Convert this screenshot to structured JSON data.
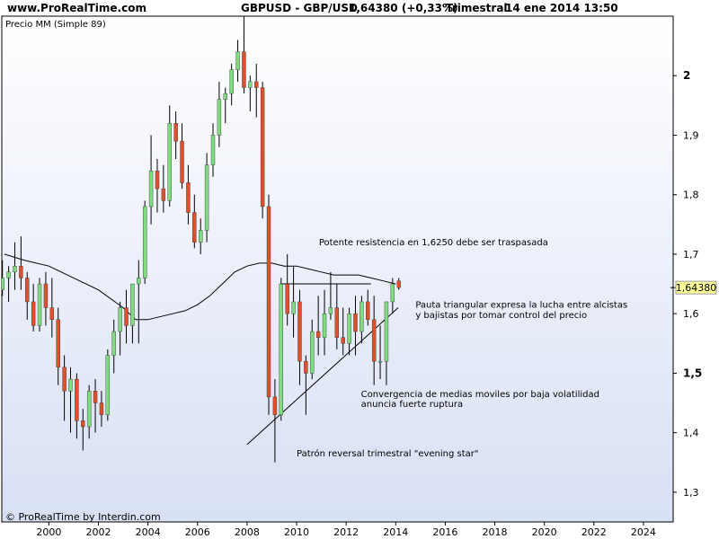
{
  "header": {
    "site": "www.ProRealTime.com",
    "symbol": "GBPUSD - GBP/USD",
    "quote": "1,64380 (+0,33%)",
    "period": "Trimestral",
    "datetime": "14 ene 2014 13:50"
  },
  "footer": {
    "credit": "© ProRealTime by Interdin.com"
  },
  "chart_data": {
    "type": "candlestick",
    "indicator_label": "Precio MM (Simple 89)",
    "last_price": 1.6438,
    "last_price_label": "1,64380",
    "ylim": [
      1.25,
      2.1
    ],
    "xlim": [
      1998.1,
      2025.2
    ],
    "y_ticks": [
      1.3,
      1.4,
      1.5,
      1.6,
      1.7,
      1.8,
      1.9,
      2.0
    ],
    "y_tick_labels": [
      "1,3",
      "1,4",
      "1,5",
      "1,6",
      "1,7",
      "1,8",
      "1,9",
      "2"
    ],
    "x_ticks": [
      2000,
      2002,
      2004,
      2006,
      2008,
      2010,
      2012,
      2014,
      2016,
      2018,
      2020,
      2022,
      2024
    ],
    "x_tick_labels": [
      "2000",
      "2002",
      "2004",
      "2006",
      "2008",
      "2010",
      "2012",
      "2014",
      "2016",
      "2018",
      "2020",
      "2022",
      "2024"
    ],
    "candles": [
      {
        "t": "1998Q1",
        "o": 1.64,
        "h": 1.69,
        "l": 1.63,
        "c": 1.66
      },
      {
        "t": "1998Q2",
        "o": 1.66,
        "h": 1.68,
        "l": 1.62,
        "c": 1.67
      },
      {
        "t": "1998Q3",
        "o": 1.67,
        "h": 1.72,
        "l": 1.64,
        "c": 1.68
      },
      {
        "t": "1998Q4",
        "o": 1.68,
        "h": 1.73,
        "l": 1.64,
        "c": 1.66
      },
      {
        "t": "1999Q1",
        "o": 1.66,
        "h": 1.67,
        "l": 1.59,
        "c": 1.62
      },
      {
        "t": "1999Q2",
        "o": 1.62,
        "h": 1.65,
        "l": 1.57,
        "c": 1.58
      },
      {
        "t": "1999Q3",
        "o": 1.58,
        "h": 1.66,
        "l": 1.57,
        "c": 1.65
      },
      {
        "t": "1999Q4",
        "o": 1.65,
        "h": 1.67,
        "l": 1.58,
        "c": 1.61
      },
      {
        "t": "2000Q1",
        "o": 1.61,
        "h": 1.66,
        "l": 1.56,
        "c": 1.59
      },
      {
        "t": "2000Q2",
        "o": 1.59,
        "h": 1.61,
        "l": 1.48,
        "c": 1.51
      },
      {
        "t": "2000Q3",
        "o": 1.51,
        "h": 1.53,
        "l": 1.42,
        "c": 1.47
      },
      {
        "t": "2000Q4",
        "o": 1.47,
        "h": 1.51,
        "l": 1.4,
        "c": 1.49
      },
      {
        "t": "2001Q1",
        "o": 1.49,
        "h": 1.5,
        "l": 1.39,
        "c": 1.42
      },
      {
        "t": "2001Q2",
        "o": 1.42,
        "h": 1.44,
        "l": 1.37,
        "c": 1.41
      },
      {
        "t": "2001Q3",
        "o": 1.41,
        "h": 1.48,
        "l": 1.39,
        "c": 1.47
      },
      {
        "t": "2001Q4",
        "o": 1.47,
        "h": 1.49,
        "l": 1.4,
        "c": 1.45
      },
      {
        "t": "2002Q1",
        "o": 1.45,
        "h": 1.47,
        "l": 1.41,
        "c": 1.43
      },
      {
        "t": "2002Q2",
        "o": 1.43,
        "h": 1.54,
        "l": 1.42,
        "c": 1.53
      },
      {
        "t": "2002Q3",
        "o": 1.53,
        "h": 1.59,
        "l": 1.5,
        "c": 1.57
      },
      {
        "t": "2002Q4",
        "o": 1.57,
        "h": 1.62,
        "l": 1.53,
        "c": 1.61
      },
      {
        "t": "2003Q1",
        "o": 1.61,
        "h": 1.64,
        "l": 1.55,
        "c": 1.58
      },
      {
        "t": "2003Q2",
        "o": 1.58,
        "h": 1.65,
        "l": 1.55,
        "c": 1.65
      },
      {
        "t": "2003Q3",
        "o": 1.65,
        "h": 1.69,
        "l": 1.55,
        "c": 1.66
      },
      {
        "t": "2003Q4",
        "o": 1.66,
        "h": 1.79,
        "l": 1.65,
        "c": 1.78
      },
      {
        "t": "2004Q1",
        "o": 1.78,
        "h": 1.9,
        "l": 1.75,
        "c": 1.84
      },
      {
        "t": "2004Q2",
        "o": 1.84,
        "h": 1.86,
        "l": 1.77,
        "c": 1.81
      },
      {
        "t": "2004Q3",
        "o": 1.81,
        "h": 1.85,
        "l": 1.77,
        "c": 1.79
      },
      {
        "t": "2004Q4",
        "o": 1.79,
        "h": 1.95,
        "l": 1.78,
        "c": 1.92
      },
      {
        "t": "2005Q1",
        "o": 1.92,
        "h": 1.94,
        "l": 1.86,
        "c": 1.89
      },
      {
        "t": "2005Q2",
        "o": 1.89,
        "h": 1.92,
        "l": 1.81,
        "c": 1.82
      },
      {
        "t": "2005Q3",
        "o": 1.82,
        "h": 1.85,
        "l": 1.75,
        "c": 1.77
      },
      {
        "t": "2005Q4",
        "o": 1.77,
        "h": 1.8,
        "l": 1.71,
        "c": 1.72
      },
      {
        "t": "2006Q1",
        "o": 1.72,
        "h": 1.76,
        "l": 1.7,
        "c": 1.74
      },
      {
        "t": "2006Q2",
        "o": 1.74,
        "h": 1.87,
        "l": 1.72,
        "c": 1.85
      },
      {
        "t": "2006Q3",
        "o": 1.85,
        "h": 1.92,
        "l": 1.83,
        "c": 1.9
      },
      {
        "t": "2006Q4",
        "o": 1.9,
        "h": 1.99,
        "l": 1.88,
        "c": 1.96
      },
      {
        "t": "2007Q1",
        "o": 1.96,
        "h": 1.98,
        "l": 1.92,
        "c": 1.97
      },
      {
        "t": "2007Q2",
        "o": 1.97,
        "h": 2.02,
        "l": 1.95,
        "c": 2.01
      },
      {
        "t": "2007Q3",
        "o": 2.01,
        "h": 2.06,
        "l": 1.99,
        "c": 2.04
      },
      {
        "t": "2007Q4",
        "o": 2.04,
        "h": 2.12,
        "l": 1.97,
        "c": 1.98
      },
      {
        "t": "2008Q1",
        "o": 1.98,
        "h": 2.0,
        "l": 1.94,
        "c": 1.99
      },
      {
        "t": "2008Q2",
        "o": 1.99,
        "h": 2.02,
        "l": 1.93,
        "c": 1.98
      },
      {
        "t": "2008Q3",
        "o": 1.98,
        "h": 1.99,
        "l": 1.76,
        "c": 1.78
      },
      {
        "t": "2008Q4",
        "o": 1.78,
        "h": 1.8,
        "l": 1.43,
        "c": 1.46
      },
      {
        "t": "2009Q1",
        "o": 1.46,
        "h": 1.49,
        "l": 1.35,
        "c": 1.43
      },
      {
        "t": "2009Q2",
        "o": 1.43,
        "h": 1.66,
        "l": 1.42,
        "c": 1.65
      },
      {
        "t": "2009Q3",
        "o": 1.65,
        "h": 1.7,
        "l": 1.58,
        "c": 1.6
      },
      {
        "t": "2009Q4",
        "o": 1.6,
        "h": 1.68,
        "l": 1.56,
        "c": 1.62
      },
      {
        "t": "2010Q1",
        "o": 1.62,
        "h": 1.64,
        "l": 1.48,
        "c": 1.52
      },
      {
        "t": "2010Q2",
        "o": 1.52,
        "h": 1.53,
        "l": 1.43,
        "c": 1.5
      },
      {
        "t": "2010Q3",
        "o": 1.5,
        "h": 1.59,
        "l": 1.49,
        "c": 1.57
      },
      {
        "t": "2010Q4",
        "o": 1.57,
        "h": 1.63,
        "l": 1.53,
        "c": 1.56
      },
      {
        "t": "2011Q1",
        "o": 1.56,
        "h": 1.64,
        "l": 1.53,
        "c": 1.6
      },
      {
        "t": "2011Q2",
        "o": 1.6,
        "h": 1.67,
        "l": 1.59,
        "c": 1.61
      },
      {
        "t": "2011Q3",
        "o": 1.61,
        "h": 1.65,
        "l": 1.54,
        "c": 1.56
      },
      {
        "t": "2011Q4",
        "o": 1.56,
        "h": 1.61,
        "l": 1.53,
        "c": 1.55
      },
      {
        "t": "2012Q1",
        "o": 1.55,
        "h": 1.61,
        "l": 1.53,
        "c": 1.6
      },
      {
        "t": "2012Q2",
        "o": 1.6,
        "h": 1.63,
        "l": 1.53,
        "c": 1.57
      },
      {
        "t": "2012Q3",
        "o": 1.57,
        "h": 1.63,
        "l": 1.55,
        "c": 1.62
      },
      {
        "t": "2012Q4",
        "o": 1.62,
        "h": 1.64,
        "l": 1.58,
        "c": 1.59
      },
      {
        "t": "2013Q1",
        "o": 1.59,
        "h": 1.63,
        "l": 1.48,
        "c": 1.52
      },
      {
        "t": "2013Q2",
        "o": 1.52,
        "h": 1.58,
        "l": 1.49,
        "c": 1.52
      },
      {
        "t": "2013Q3",
        "o": 1.52,
        "h": 1.62,
        "l": 1.48,
        "c": 1.62
      },
      {
        "t": "2013Q4",
        "o": 1.62,
        "h": 1.66,
        "l": 1.6,
        "c": 1.65
      },
      {
        "t": "2014Q1",
        "o": 1.655,
        "h": 1.66,
        "l": 1.64,
        "c": 1.6438
      }
    ],
    "moving_average": {
      "label": "Precio MM (Simple 89)",
      "x": [
        1998.2,
        1999.0,
        2000.0,
        2001.0,
        2002.0,
        2003.0,
        2003.5,
        2004.0,
        2005.0,
        2005.5,
        2006.0,
        2006.5,
        2007.0,
        2007.5,
        2008.0,
        2008.5,
        2009.0,
        2009.5,
        2010.0,
        2010.5,
        2011.0,
        2011.5,
        2012.0,
        2012.5,
        2013.0,
        2013.5,
        2014.0
      ],
      "y": [
        1.7,
        1.69,
        1.68,
        1.66,
        1.64,
        1.61,
        1.59,
        1.59,
        1.6,
        1.605,
        1.615,
        1.63,
        1.65,
        1.67,
        1.68,
        1.685,
        1.685,
        1.68,
        1.68,
        1.675,
        1.67,
        1.665,
        1.665,
        1.665,
        1.66,
        1.655,
        1.65
      ]
    },
    "trend_lines": [
      {
        "x1": 2008.0,
        "y1": 1.38,
        "x2": 2014.1,
        "y2": 1.61
      },
      {
        "x1": 2009.35,
        "y1": 1.65,
        "x2": 2013.0,
        "y2": 1.65
      }
    ],
    "annotations": [
      {
        "text": "Potente resistencia en 1,6250 debe ser traspasada",
        "x": 2010.9,
        "y": 1.715
      },
      {
        "text": "Pauta triangular expresa la lucha entre alcistas",
        "x": 2014.8,
        "y": 1.61
      },
      {
        "text": "y bajistas por tomar control del precio",
        "x": 2014.8,
        "y": 1.593
      },
      {
        "text": "Convergencia de medias moviles por baja volatilidad",
        "x": 2012.6,
        "y": 1.46
      },
      {
        "text": "anuncia fuerte ruptura",
        "x": 2012.6,
        "y": 1.443
      },
      {
        "text": "Patrón reversal trimestral \"evening star\"",
        "x": 2010.0,
        "y": 1.36
      }
    ],
    "colors": {
      "up": "#7fdc7f",
      "down": "#e0502a",
      "wick": "#000000",
      "moving_average": "#000000",
      "background_top": "#ffffff",
      "background_bottom": "#d8e0f4",
      "last_price_box": "#ffff99"
    }
  }
}
